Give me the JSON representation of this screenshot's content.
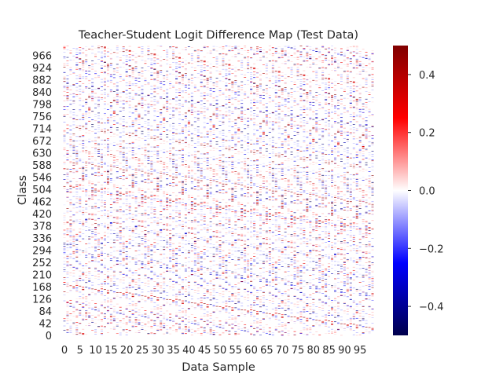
{
  "chart_data": {
    "type": "heatmap",
    "title": "Teacher-Student Logit Difference Map (Test Data)",
    "xlabel": "Data Sample",
    "ylabel": "Class",
    "x_range": [
      0,
      100
    ],
    "y_range": [
      0,
      1000
    ],
    "x_tick_labels": [
      "0",
      "5",
      "10",
      "15",
      "20",
      "25",
      "30",
      "35",
      "40",
      "45",
      "50",
      "55",
      "60",
      "65",
      "70",
      "75",
      "80",
      "85",
      "90",
      "95"
    ],
    "y_tick_labels": [
      "0",
      "42",
      "84",
      "126",
      "168",
      "210",
      "252",
      "294",
      "336",
      "378",
      "420",
      "462",
      "504",
      "546",
      "588",
      "630",
      "672",
      "714",
      "756",
      "798",
      "840",
      "882",
      "924",
      "966"
    ],
    "colorbar": {
      "colormap": "seismic",
      "vmin": -0.5,
      "vmax": 0.5,
      "tick_labels": [
        "−0.4",
        "−0.2",
        "0.0",
        "0.2",
        "0.4"
      ],
      "tick_values": [
        -0.4,
        -0.2,
        0.0,
        0.2,
        0.4
      ]
    },
    "value_summary": "sparse short horizontal strokes on a mostly white (near 0) background; per-cell values not recoverable from the image"
  }
}
